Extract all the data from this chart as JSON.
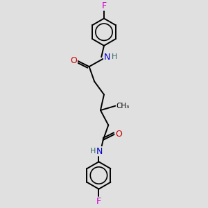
{
  "bg_color": "#e0e0e0",
  "atom_colors": {
    "C": "#000000",
    "N": "#0000cc",
    "O": "#cc0000",
    "F": "#cc00cc",
    "H": "#336666"
  },
  "bond_color": "#000000",
  "bond_width": 1.4,
  "figsize": [
    3.0,
    3.0
  ],
  "dpi": 100,
  "xlim": [
    -2.5,
    3.5
  ],
  "ylim": [
    -5.5,
    5.5
  ]
}
